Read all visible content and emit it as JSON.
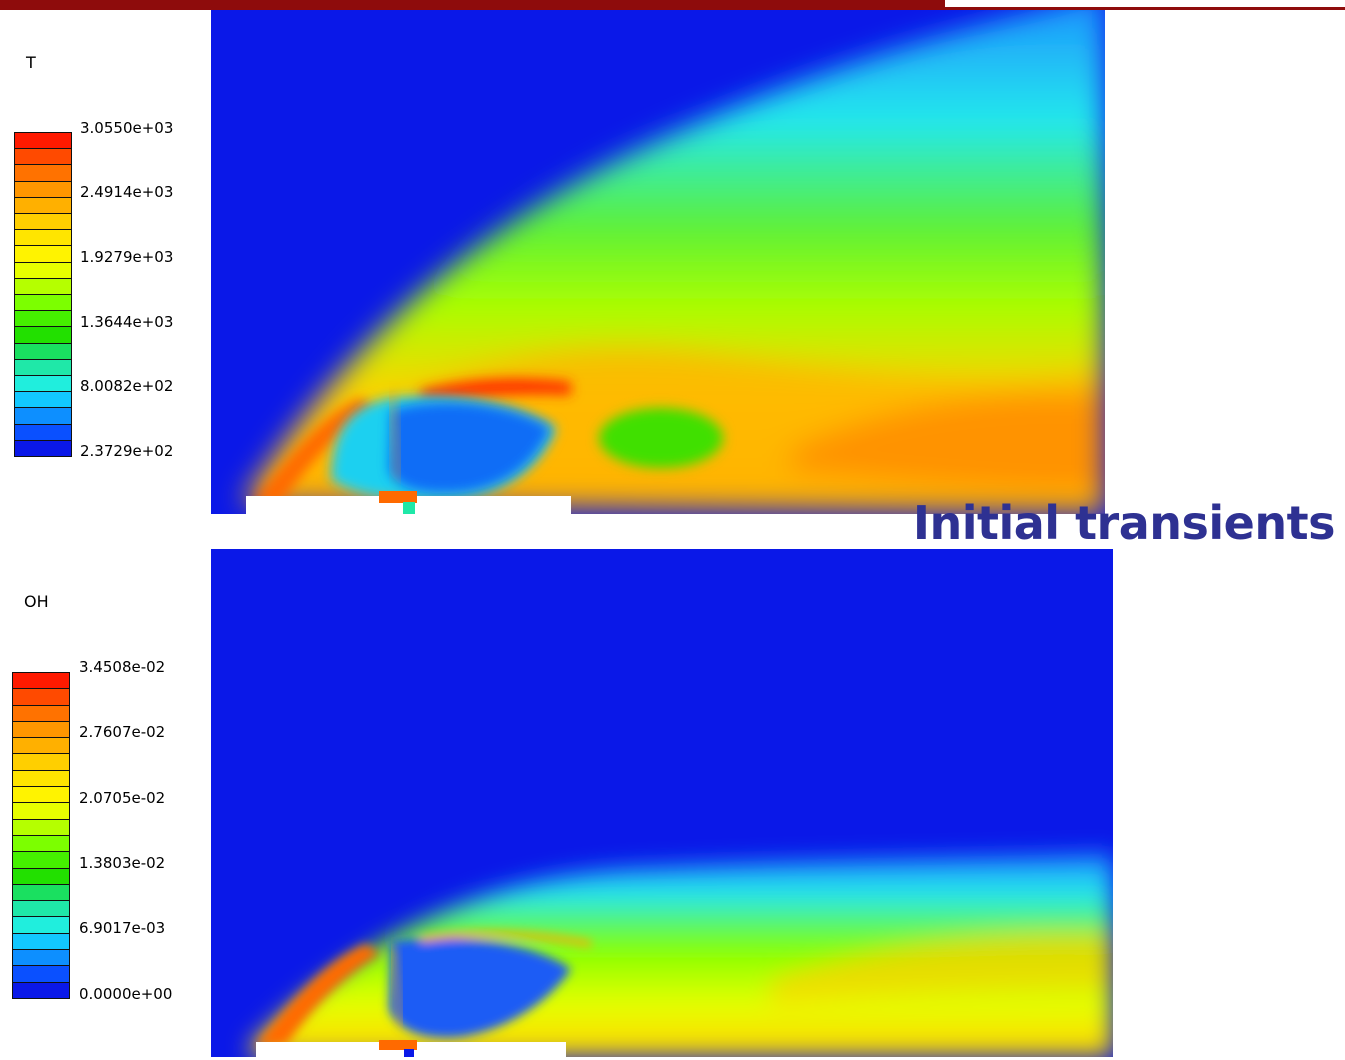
{
  "headline": "Initial transients",
  "panels": [
    {
      "variable": "T",
      "ticks": [
        "3.0550e+03",
        "2.4914e+03",
        "1.9279e+03",
        "1.3644e+03",
        "8.0082e+02",
        "2.3729e+02"
      ]
    },
    {
      "variable": "OH",
      "ticks": [
        "3.4508e-02",
        "2.7607e-02",
        "2.0705e-02",
        "1.3803e-02",
        "6.9017e-03",
        "0.0000e+00"
      ]
    }
  ],
  "colormap": [
    "#ff1a00",
    "#ff4a00",
    "#ff7200",
    "#ff9600",
    "#ffb000",
    "#ffcf00",
    "#ffe500",
    "#fff300",
    "#e8ff00",
    "#b5ff00",
    "#7cff00",
    "#45f000",
    "#22e000",
    "#1ae060",
    "#1fe8a8",
    "#20eedd",
    "#12c8ff",
    "#0d8fff",
    "#0a50ff",
    "#0a18e8"
  ],
  "colors": {
    "field_background": "#0a18e8",
    "accent_bar": "#8e0c0c",
    "headline": "#2e3192"
  }
}
